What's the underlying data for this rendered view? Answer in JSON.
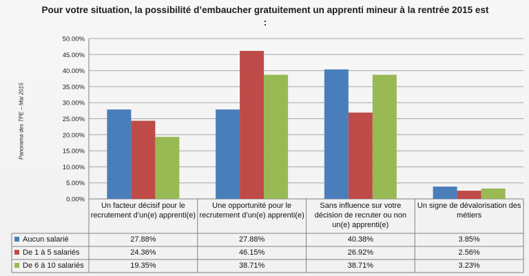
{
  "title": "Pour votre situation, la possibilité d’embaucher gratuitement un apprenti mineur à la rentrée 2015 est :",
  "side_note": "Panorama des TPE – Mai 2015",
  "colors": {
    "series_1": "#4a7ebb",
    "series_2": "#be4b48",
    "series_3": "#98b954",
    "grid": "#a6a6a6",
    "axis": "#808080"
  },
  "chart_data": {
    "type": "bar",
    "title": "Pour votre situation, la possibilité d’embaucher gratuitement un apprenti mineur à la rentrée 2015 est :",
    "ylabel": "",
    "xlabel": "",
    "ylim": [
      0,
      50
    ],
    "y_ticks": [
      "0.00%",
      "5.00%",
      "10.00%",
      "15.00%",
      "20.00%",
      "25.00%",
      "30.00%",
      "35.00%",
      "40.00%",
      "45.00%",
      "50.00%"
    ],
    "grid": true,
    "legend": "data-table",
    "categories": [
      "Un facteur décisif pour le recrutement d’un(e) apprenti(e)",
      "Une opportunité pour le recrutement d’un(e) apprenti(e)",
      "Sans influence sur votre décision de recruter ou non un(e) apprenti(e)",
      "Un signe de dévalorisation des métiers"
    ],
    "series": [
      {
        "name": "Aucun salarié",
        "values": [
          27.88,
          27.88,
          40.38,
          3.85
        ],
        "labels": [
          "27.88%",
          "27.88%",
          "40.38%",
          "3.85%"
        ]
      },
      {
        "name": "De 1 à 5 salariés",
        "values": [
          24.36,
          46.15,
          26.92,
          2.56
        ],
        "labels": [
          "24.36%",
          "46.15%",
          "26.92%",
          "2.56%"
        ]
      },
      {
        "name": "De 6 à 10 salariés",
        "values": [
          19.35,
          38.71,
          38.71,
          3.23
        ],
        "labels": [
          "19.35%",
          "38.71%",
          "38.71%",
          "3.23%"
        ]
      }
    ]
  }
}
